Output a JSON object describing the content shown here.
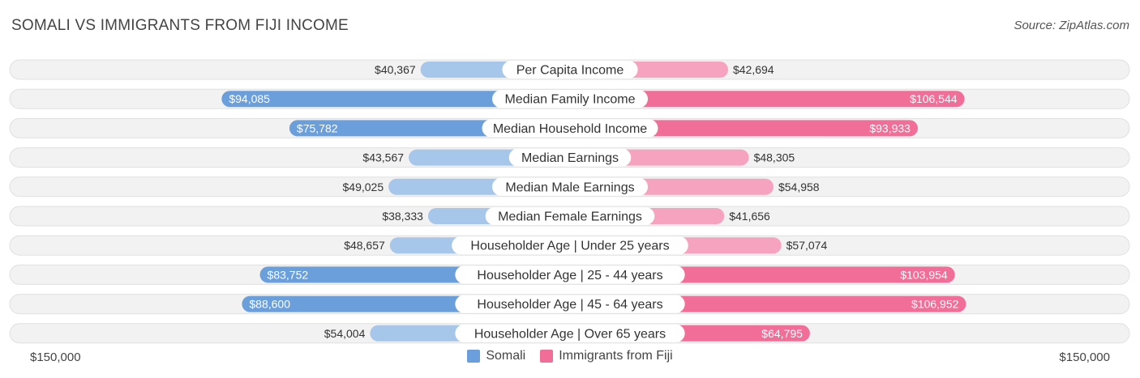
{
  "header": {
    "title": "SOMALI VS IMMIGRANTS FROM FIJI INCOME",
    "source": "Source: ZipAtlas.com"
  },
  "colors": {
    "left_strong": "#6a9fdc",
    "left_light": "#a6c6ea",
    "right_strong": "#f06e98",
    "right_light": "#f6a3bf",
    "row_bg": "#f2f2f2",
    "row_border": "#e0e0e0"
  },
  "chart_data": {
    "type": "bar",
    "title": "SOMALI VS IMMIGRANTS FROM FIJI INCOME",
    "xlim": [
      -150000,
      150000
    ],
    "axis_left_label": "$150,000",
    "axis_right_label": "$150,000",
    "categories": [
      "Per Capita Income",
      "Median Family Income",
      "Median Household Income",
      "Median Earnings",
      "Median Male Earnings",
      "Median Female Earnings",
      "Householder Age | Under 25 years",
      "Householder Age | 25 - 44 years",
      "Householder Age | 45 - 64 years",
      "Householder Age | Over 65 years"
    ],
    "series": [
      {
        "name": "Somali",
        "values": [
          40367,
          94085,
          75782,
          43567,
          49025,
          38333,
          48657,
          83752,
          88600,
          54004
        ],
        "labels": [
          "$40,367",
          "$94,085",
          "$75,782",
          "$43,567",
          "$49,025",
          "$38,333",
          "$48,657",
          "$83,752",
          "$88,600",
          "$54,004"
        ]
      },
      {
        "name": "Immigrants from Fiji",
        "values": [
          42694,
          106544,
          93933,
          48305,
          54958,
          41656,
          57074,
          103954,
          106952,
          64795
        ],
        "labels": [
          "$42,694",
          "$106,544",
          "$93,933",
          "$48,305",
          "$54,958",
          "$41,656",
          "$57,074",
          "$103,954",
          "$106,952",
          "$64,795"
        ]
      }
    ],
    "legend": [
      "Somali",
      "Immigrants from Fiji"
    ]
  }
}
